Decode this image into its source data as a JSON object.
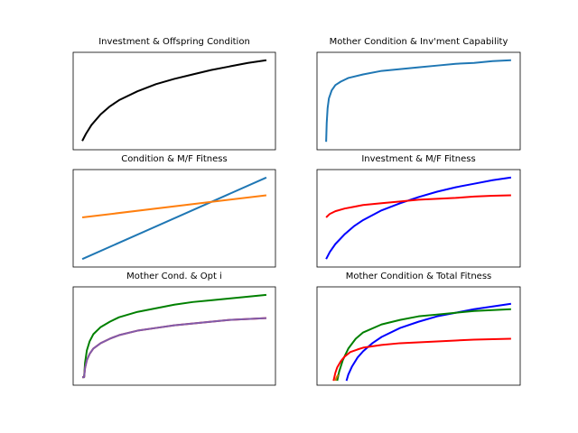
{
  "chart_data": [
    {
      "type": "line",
      "title": "Investment & Offspring Condition",
      "xlim": [
        0,
        1
      ],
      "ylim": [
        0,
        1
      ],
      "series": [
        {
          "color": "#000000",
          "x": [
            0.0,
            0.02,
            0.05,
            0.1,
            0.15,
            0.2,
            0.3,
            0.4,
            0.5,
            0.6,
            0.7,
            0.8,
            0.9,
            1.0
          ],
          "y": [
            0.05,
            0.13,
            0.23,
            0.35,
            0.44,
            0.51,
            0.61,
            0.69,
            0.75,
            0.8,
            0.85,
            0.89,
            0.93,
            0.96
          ]
        }
      ]
    },
    {
      "type": "line",
      "title": "Mother Condition & Inv'ment Capability",
      "xlim": [
        0,
        1
      ],
      "ylim": [
        0,
        1
      ],
      "series": [
        {
          "color": "#1f77b4",
          "x": [
            0.0,
            0.003,
            0.008,
            0.015,
            0.03,
            0.05,
            0.08,
            0.12,
            0.2,
            0.3,
            0.4,
            0.5,
            0.6,
            0.7,
            0.8,
            0.9,
            1.0
          ],
          "y": [
            0.04,
            0.25,
            0.42,
            0.53,
            0.62,
            0.68,
            0.72,
            0.76,
            0.8,
            0.84,
            0.86,
            0.88,
            0.9,
            0.92,
            0.93,
            0.95,
            0.96
          ]
        }
      ]
    },
    {
      "type": "line",
      "title": "Condition & M/F Fitness",
      "xlim": [
        0,
        1
      ],
      "ylim": [
        0,
        1
      ],
      "series": [
        {
          "color": "#1f77b4",
          "x": [
            0.0,
            1.0
          ],
          "y": [
            0.04,
            0.96
          ]
        },
        {
          "color": "#ff7f0e",
          "x": [
            0.0,
            1.0
          ],
          "y": [
            0.51,
            0.76
          ]
        }
      ]
    },
    {
      "type": "line",
      "title": "Investment & M/F Fitness",
      "xlim": [
        0,
        1
      ],
      "ylim": [
        0,
        1
      ],
      "series": [
        {
          "color": "#0000ff",
          "x": [
            0.0,
            0.02,
            0.05,
            0.1,
            0.15,
            0.2,
            0.3,
            0.4,
            0.5,
            0.6,
            0.7,
            0.8,
            0.9,
            1.0
          ],
          "y": [
            0.04,
            0.12,
            0.21,
            0.32,
            0.41,
            0.48,
            0.59,
            0.67,
            0.74,
            0.8,
            0.85,
            0.89,
            0.93,
            0.96
          ]
        },
        {
          "color": "#ff0000",
          "x": [
            0.0,
            0.02,
            0.05,
            0.1,
            0.15,
            0.2,
            0.3,
            0.4,
            0.5,
            0.6,
            0.7,
            0.8,
            0.9,
            1.0
          ],
          "y": [
            0.51,
            0.55,
            0.58,
            0.61,
            0.63,
            0.65,
            0.67,
            0.69,
            0.71,
            0.72,
            0.73,
            0.745,
            0.755,
            0.76
          ]
        }
      ]
    },
    {
      "type": "line",
      "title": "Mother Cond. & Opt i",
      "xlim": [
        0,
        1
      ],
      "ylim": [
        0,
        1
      ],
      "series": [
        {
          "color": "#008000",
          "x": [
            0.0,
            0.01,
            0.015,
            0.025,
            0.04,
            0.06,
            0.1,
            0.15,
            0.2,
            0.3,
            0.4,
            0.5,
            0.6,
            0.7,
            0.8,
            0.9,
            1.0
          ],
          "y": [
            0.04,
            0.04,
            0.2,
            0.34,
            0.44,
            0.52,
            0.6,
            0.66,
            0.71,
            0.77,
            0.81,
            0.85,
            0.88,
            0.9,
            0.92,
            0.94,
            0.96
          ]
        },
        {
          "color": "#ff0000",
          "x": [
            0.0,
            0.01,
            0.015,
            0.025,
            0.04,
            0.06,
            0.1,
            0.15,
            0.2,
            0.3,
            0.4,
            0.5,
            0.6,
            0.7,
            0.8,
            0.9,
            1.0
          ],
          "y": [
            0.04,
            0.04,
            0.14,
            0.23,
            0.3,
            0.36,
            0.42,
            0.47,
            0.51,
            0.56,
            0.59,
            0.62,
            0.64,
            0.66,
            0.68,
            0.69,
            0.7
          ]
        },
        {
          "color": "#7f5cab",
          "x": [
            0.0,
            0.01,
            0.015,
            0.025,
            0.04,
            0.06,
            0.1,
            0.15,
            0.2,
            0.3,
            0.4,
            0.5,
            0.6,
            0.7,
            0.8,
            0.9,
            1.0
          ],
          "y": [
            0.04,
            0.04,
            0.14,
            0.23,
            0.3,
            0.36,
            0.42,
            0.47,
            0.51,
            0.56,
            0.59,
            0.62,
            0.64,
            0.66,
            0.68,
            0.69,
            0.7
          ]
        }
      ]
    },
    {
      "type": "line",
      "title": "Mother Condition & Total Fitness",
      "xlim": [
        0,
        1
      ],
      "ylim": [
        0,
        1
      ],
      "series": [
        {
          "color": "#0000ff",
          "x": [
            0.11,
            0.12,
            0.14,
            0.17,
            0.2,
            0.25,
            0.3,
            0.4,
            0.5,
            0.6,
            0.7,
            0.8,
            0.9,
            1.0
          ],
          "y": [
            0.0,
            0.07,
            0.16,
            0.26,
            0.33,
            0.42,
            0.49,
            0.59,
            0.66,
            0.72,
            0.76,
            0.8,
            0.83,
            0.86
          ]
        },
        {
          "color": "#008000",
          "x": [
            0.06,
            0.07,
            0.09,
            0.12,
            0.16,
            0.2,
            0.3,
            0.4,
            0.5,
            0.6,
            0.7,
            0.8,
            0.9,
            1.0
          ],
          "y": [
            0.0,
            0.1,
            0.23,
            0.36,
            0.47,
            0.54,
            0.63,
            0.68,
            0.72,
            0.74,
            0.76,
            0.78,
            0.79,
            0.8
          ]
        },
        {
          "color": "#ff0000",
          "x": [
            0.04,
            0.05,
            0.06,
            0.08,
            0.1,
            0.13,
            0.17,
            0.2,
            0.3,
            0.4,
            0.5,
            0.6,
            0.7,
            0.8,
            0.9,
            1.0
          ],
          "y": [
            0.0,
            0.09,
            0.15,
            0.22,
            0.27,
            0.32,
            0.35,
            0.37,
            0.4,
            0.42,
            0.43,
            0.44,
            0.45,
            0.46,
            0.465,
            0.47
          ]
        },
        {
          "color": "#cc7700",
          "x": [
            0.05,
            0.055,
            0.06,
            0.065
          ],
          "y": [
            0.0,
            0.03,
            0.05,
            0.07
          ]
        }
      ]
    }
  ]
}
